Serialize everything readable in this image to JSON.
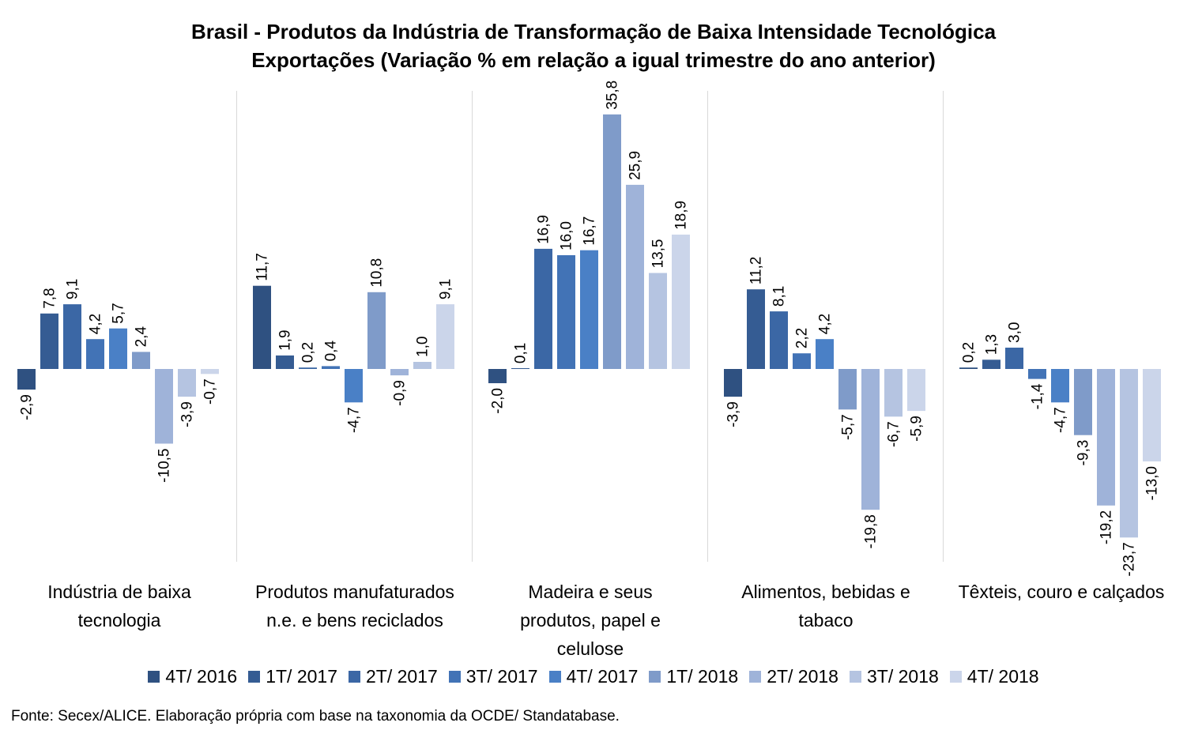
{
  "title_line1": "Brasil - Produtos da Indústria de Transformação de Baixa Intensidade Tecnológica",
  "title_line2": "Exportações (Variação % em relação a igual trimestre do ano anterior)",
  "source": "Fonte: Secex/ALICE. Elaboração própria com base na taxonomia da OCDE/ Standatabase.",
  "chart_data": {
    "type": "bar",
    "title": "Brasil - Produtos da Indústria de Transformação de Baixa Intensidade Tecnológica Exportações (Variação % em relação a igual trimestre do ano anterior)",
    "categories": [
      [
        "Indústria de baixa",
        "tecnologia"
      ],
      [
        "Produtos manufaturados",
        "n.e. e bens reciclados"
      ],
      [
        "Madeira e seus",
        "produtos, papel e",
        "celulose"
      ],
      [
        "Alimentos, bebidas e",
        "tabaco"
      ],
      [
        "Têxteis, couro e calçados"
      ]
    ],
    "series": [
      {
        "name": "4T/ 2016",
        "color": "#2f5181",
        "values": [
          -2.9,
          11.7,
          -2.0,
          -3.9,
          0.2
        ]
      },
      {
        "name": "1T/ 2017",
        "color": "#355c93",
        "values": [
          7.8,
          1.9,
          0.1,
          11.2,
          1.3
        ]
      },
      {
        "name": "2T/ 2017",
        "color": "#3b67a5",
        "values": [
          9.1,
          0.2,
          16.9,
          8.1,
          3.0
        ]
      },
      {
        "name": "3T/ 2017",
        "color": "#4273b6",
        "values": [
          4.2,
          0.4,
          16.0,
          2.2,
          -1.4
        ]
      },
      {
        "name": "4T/ 2017",
        "color": "#4a80c6",
        "values": [
          5.7,
          -4.7,
          16.7,
          4.2,
          -4.7
        ]
      },
      {
        "name": "1T/ 2018",
        "color": "#7f9bc9",
        "values": [
          2.4,
          10.8,
          35.8,
          -5.7,
          -9.3
        ]
      },
      {
        "name": "2T/ 2018",
        "color": "#9fb3d9",
        "values": [
          -10.5,
          -0.9,
          25.9,
          -19.8,
          -19.2
        ]
      },
      {
        "name": "3T/ 2018",
        "color": "#b5c4e1",
        "values": [
          -3.9,
          1.0,
          13.5,
          -6.7,
          -23.7
        ]
      },
      {
        "name": "4T/ 2018",
        "color": "#cbd5ea",
        "values": [
          -0.7,
          9.1,
          18.9,
          -5.9,
          -13.0
        ]
      }
    ],
    "ylim": [
      -26.5,
      38.5
    ],
    "grid": false,
    "legend_position": "bottom"
  }
}
